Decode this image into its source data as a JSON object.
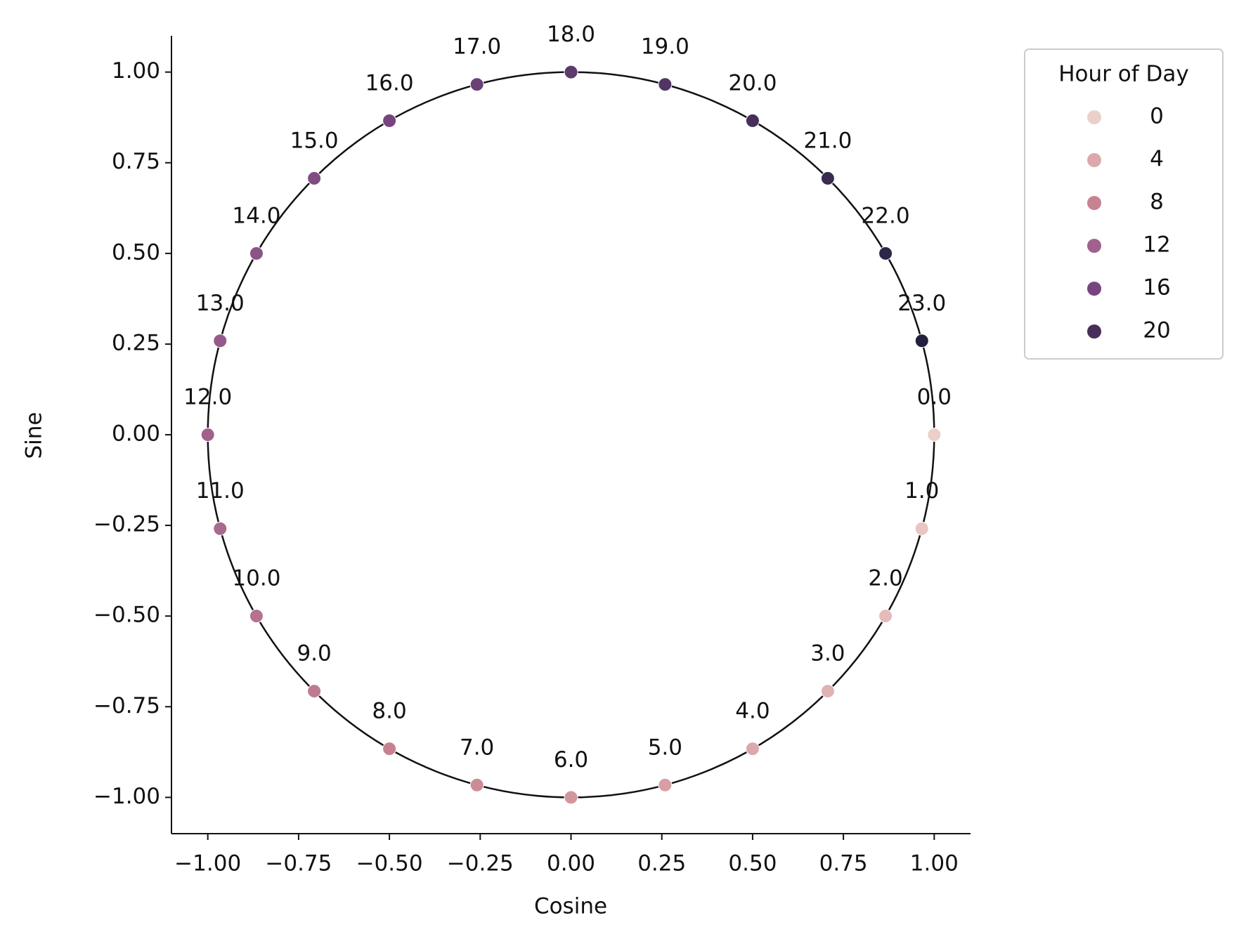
{
  "chart_data": {
    "type": "scatter",
    "x_label": "Cosine",
    "y_label": "Sine",
    "x": [
      1,
      0.966,
      0.866,
      0.707,
      0.5,
      0.259,
      0,
      -0.259,
      -0.5,
      -0.707,
      -0.866,
      -0.966,
      -1,
      -0.966,
      -0.866,
      -0.707,
      -0.5,
      -0.259,
      0,
      0.259,
      0.5,
      0.707,
      0.866,
      0.966
    ],
    "values": [
      0,
      -0.259,
      -0.5,
      -0.707,
      -0.866,
      -0.966,
      -1,
      -0.966,
      -0.866,
      -0.707,
      -0.5,
      -0.259,
      0,
      0.259,
      0.5,
      0.707,
      0.866,
      0.966,
      1,
      0.966,
      0.866,
      0.707,
      0.5,
      0.259
    ],
    "hue": [
      0,
      1,
      2,
      3,
      4,
      5,
      6,
      7,
      8,
      9,
      10,
      11,
      12,
      13,
      14,
      15,
      16,
      17,
      18,
      19,
      20,
      21,
      22,
      23
    ],
    "value_labels": [
      "0.0",
      "1.0",
      "2.0",
      "3.0",
      "4.0",
      "5.0",
      "6.0",
      "7.0",
      "8.0",
      "9.0",
      "10.0",
      "11.0",
      "12.0",
      "13.0",
      "14.0",
      "15.0",
      "16.0",
      "17.0",
      "18.0",
      "19.0",
      "20.0",
      "21.0",
      "22.0",
      "23.0"
    ],
    "xlim": [
      -1.1,
      1.1
    ],
    "ylim": [
      -1.1,
      1.1
    ],
    "xticks": [
      {
        "value": -1,
        "label": "−1.00"
      },
      {
        "value": -0.75,
        "label": "−0.75"
      },
      {
        "value": -0.5,
        "label": "−0.50"
      },
      {
        "value": -0.25,
        "label": "−0.25"
      },
      {
        "value": 0,
        "label": "0.00"
      },
      {
        "value": 0.25,
        "label": "0.25"
      },
      {
        "value": 0.5,
        "label": "0.50"
      },
      {
        "value": 0.75,
        "label": "0.75"
      },
      {
        "value": 1,
        "label": "1.00"
      }
    ],
    "yticks": [
      {
        "value": -1,
        "label": "−1.00"
      },
      {
        "value": -0.75,
        "label": "−0.75"
      },
      {
        "value": -0.5,
        "label": "−0.50"
      },
      {
        "value": -0.25,
        "label": "−0.25"
      },
      {
        "value": 0,
        "label": "0.00"
      },
      {
        "value": 0.25,
        "label": "0.25"
      },
      {
        "value": 0.5,
        "label": "0.50"
      },
      {
        "value": 0.75,
        "label": "0.75"
      },
      {
        "value": 1,
        "label": "1.00"
      }
    ],
    "grid": false,
    "legend": {
      "title": "Hour of Day",
      "position": "outside-upper-right",
      "entries": [
        {
          "value": 0,
          "color": "#ebd0c9"
        },
        {
          "value": 4,
          "color": "#dda8ab"
        },
        {
          "value": 8,
          "color": "#c6838f"
        },
        {
          "value": 12,
          "color": "#a1618d"
        },
        {
          "value": 16,
          "color": "#764580"
        },
        {
          "value": 20,
          "color": "#46305a"
        }
      ]
    }
  }
}
